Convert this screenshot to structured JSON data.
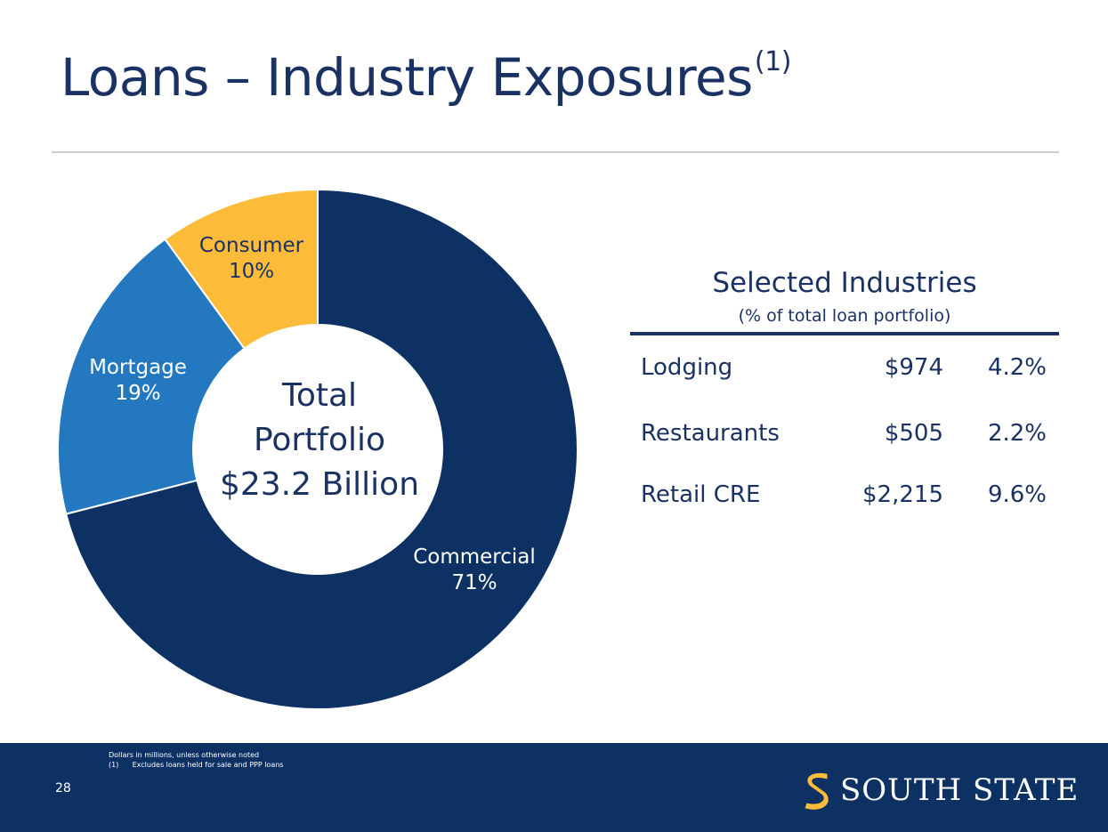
{
  "slide": {
    "title": "Loans – Industry Exposures",
    "title_superscript": "(1)",
    "page_number": "28"
  },
  "center_text": {
    "line1": "Total",
    "line2": "Portfolio",
    "line3": "$23.2 Billion"
  },
  "chart_data": {
    "type": "pie",
    "variant": "donut",
    "slices": [
      {
        "label": "Commercial",
        "value": 71,
        "display": "71%",
        "color": "#0e3164"
      },
      {
        "label": "Mortgage",
        "value": 19,
        "display": "19%",
        "color": "#2478c0"
      },
      {
        "label": "Consumer",
        "value": 10,
        "display": "10%",
        "color": "#fdbb3a"
      }
    ]
  },
  "selected_industries": {
    "title": "Selected Industries",
    "subtitle": "(% of total loan portfolio)",
    "rows": [
      {
        "name": "Lodging",
        "amount": "$974",
        "pct": "4.2%"
      },
      {
        "name": "Restaurants",
        "amount": "$505",
        "pct": "2.2%"
      },
      {
        "name": "Retail CRE",
        "amount": "$2,215",
        "pct": "9.6%"
      }
    ]
  },
  "footer": {
    "note1": "Dollars in millions, unless otherwise noted",
    "note2_marker": "(1)",
    "note2": "Excludes loans held for sale and PPP loans",
    "brand_first": "South",
    "brand_second": "State",
    "brand_display": "SOUTH STATE"
  },
  "colors": {
    "navy": "#1a3263",
    "footer": "#0e3164",
    "gold": "#fdbb3a"
  }
}
